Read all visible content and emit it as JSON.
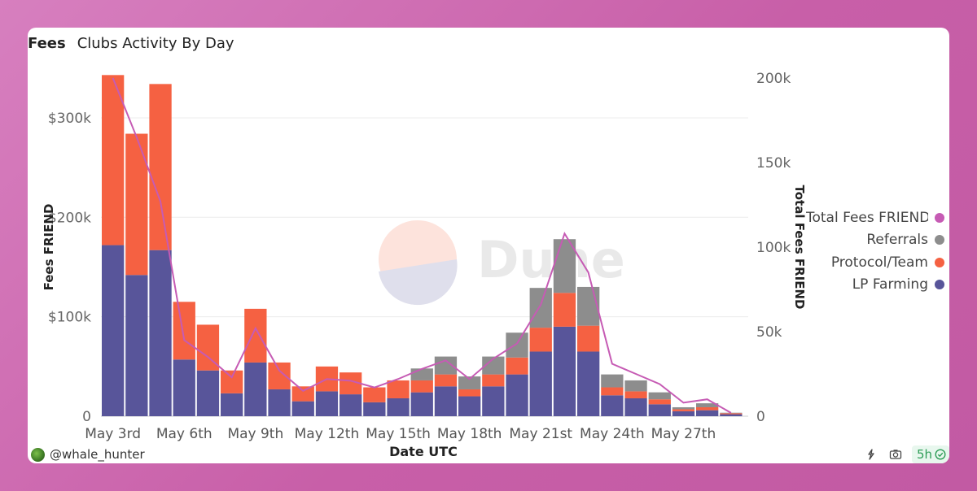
{
  "tabs": [
    {
      "label": "Fees",
      "active": true
    },
    {
      "label": "Clubs Activity By Day",
      "active": false
    }
  ],
  "watermark": "Dune",
  "author": "@whale_hunter",
  "refresh_badge": "5h",
  "colors": {
    "lp_farming": "#58559a",
    "protocol_team": "#f56142",
    "referrals": "#8d8d8d",
    "total_fees": "#c65bb4"
  },
  "chart_data": {
    "type": "bar",
    "stacked": true,
    "xlabel": "Date UTC",
    "ylabel": "Fees FRIEND",
    "y2label": "Total Fees FRIEND",
    "ylim": [
      0,
      340000
    ],
    "y2lim": [
      0,
      200000
    ],
    "yticks": [
      "0",
      "$100k",
      "$200k",
      "$300k"
    ],
    "y2ticks": [
      "0",
      "50k",
      "100k",
      "150k",
      "200k"
    ],
    "x_tick_labels": [
      "May 3rd",
      "May 6th",
      "May 9th",
      "May 12th",
      "May 15th",
      "May 18th",
      "May 21st",
      "May 24th",
      "May 27th"
    ],
    "categories": [
      "May 3rd",
      "May 4th",
      "May 5th",
      "May 6th",
      "May 7th",
      "May 8th",
      "May 9th",
      "May 10th",
      "May 11th",
      "May 12th",
      "May 13th",
      "May 14th",
      "May 15th",
      "May 16th",
      "May 17th",
      "May 18th",
      "May 19th",
      "May 20th",
      "May 21st",
      "May 22nd",
      "May 23rd",
      "May 24th",
      "May 25th",
      "May 26th",
      "May 27th",
      "May 28th",
      "May 29th"
    ],
    "grid": true,
    "legend_position": "right",
    "series": [
      {
        "name": "LP Farming",
        "type": "bar",
        "axis": "left",
        "values": [
          172000,
          142000,
          167000,
          57000,
          46000,
          23000,
          54000,
          27000,
          15000,
          25000,
          22000,
          14000,
          18000,
          24000,
          30000,
          20000,
          30000,
          42000,
          65000,
          90000,
          65000,
          21000,
          18000,
          12000,
          5000,
          6000,
          2000
        ]
      },
      {
        "name": "Protocol/Team",
        "type": "bar",
        "axis": "left",
        "values": [
          171000,
          142000,
          167000,
          58000,
          46000,
          23000,
          54000,
          27000,
          15000,
          25000,
          22000,
          15000,
          18000,
          12000,
          12000,
          7000,
          12000,
          17000,
          24000,
          34000,
          26000,
          8000,
          7000,
          5000,
          2000,
          3000,
          1000
        ]
      },
      {
        "name": "Referrals",
        "type": "bar",
        "axis": "left",
        "values": [
          0,
          0,
          0,
          0,
          0,
          0,
          0,
          0,
          0,
          0,
          0,
          0,
          0,
          12000,
          18000,
          13000,
          18000,
          25000,
          40000,
          54000,
          39000,
          13000,
          11000,
          7000,
          2000,
          4000,
          500
        ]
      },
      {
        "name": "Total Fees FRIEND",
        "type": "line",
        "axis": "right",
        "values": [
          200000,
          165000,
          127000,
          45000,
          35000,
          23000,
          52000,
          27000,
          15000,
          22000,
          21000,
          17000,
          22000,
          28000,
          33000,
          22000,
          34000,
          43000,
          66000,
          108000,
          85000,
          31000,
          25000,
          19000,
          8000,
          10000,
          2000
        ]
      }
    ]
  }
}
